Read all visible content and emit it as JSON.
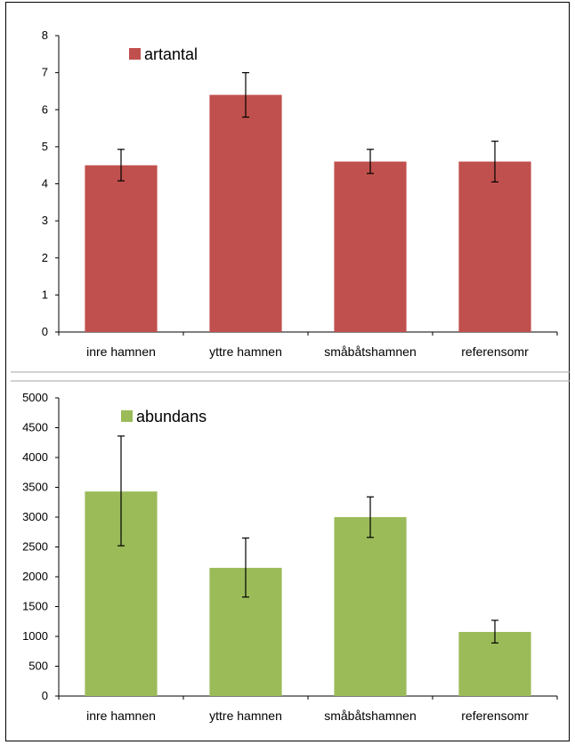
{
  "chart_data": [
    {
      "type": "bar",
      "categories": [
        "inre hamnen",
        "yttre hamnen",
        "småbåtshamnen",
        "referensomr"
      ],
      "series": [
        {
          "name": "artantal",
          "values": [
            4.5,
            6.4,
            4.6,
            4.6
          ],
          "error_low": [
            4.08,
            5.8,
            4.28,
            4.05
          ],
          "error_high": [
            4.93,
            7.0,
            4.93,
            5.15
          ],
          "color": "#c0504d"
        }
      ],
      "ylim": [
        0,
        8
      ],
      "yticks": [
        0,
        1,
        2,
        3,
        4,
        5,
        6,
        7,
        8
      ],
      "legend": "top-left",
      "grid": false
    },
    {
      "type": "bar",
      "categories": [
        "inre hamnen",
        "yttre hamnen",
        "småbåtshamnen",
        "referensomr"
      ],
      "series": [
        {
          "name": "abundans",
          "values": [
            3430,
            2150,
            3000,
            1075
          ],
          "error_low": [
            2520,
            1660,
            2660,
            890
          ],
          "error_high": [
            4360,
            2650,
            3340,
            1270
          ],
          "color": "#9bbb59"
        }
      ],
      "ylim": [
        0,
        5000
      ],
      "yticks": [
        0,
        500,
        1000,
        1500,
        2000,
        2500,
        3000,
        3500,
        4000,
        4500,
        5000
      ],
      "legend": "top-left",
      "grid": false
    }
  ]
}
